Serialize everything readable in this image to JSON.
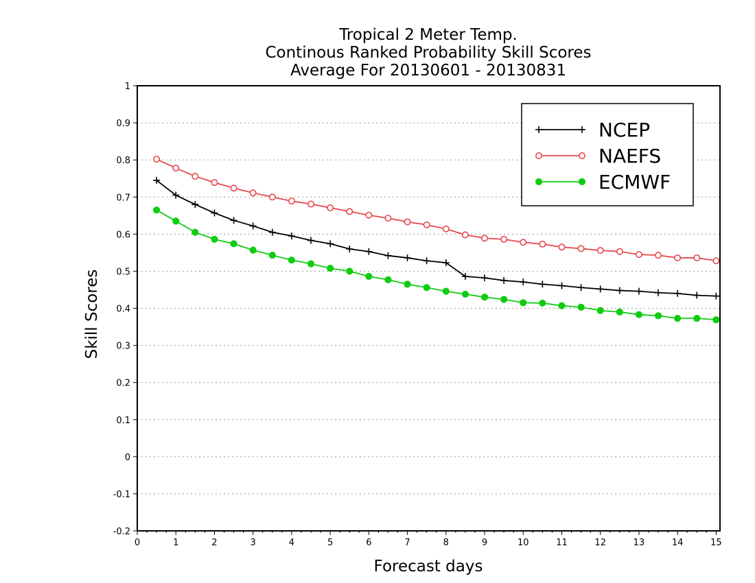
{
  "chart_data": {
    "type": "line",
    "title_lines": [
      "Tropical 2 Meter Temp.",
      "Continous Ranked Probability Skill Scores",
      "Average For 20130601 - 20130831"
    ],
    "xlabel": "Forecast days",
    "ylabel": "Skill Scores",
    "xlim": [
      0,
      15.1
    ],
    "ylim": [
      -0.2,
      1
    ],
    "x_ticks": [
      0,
      1,
      2,
      3,
      4,
      5,
      6,
      7,
      8,
      9,
      10,
      11,
      12,
      13,
      14,
      15
    ],
    "x_tick_labels": [
      "0",
      "1",
      "2",
      "3",
      "4",
      "5",
      "6",
      "7",
      "8",
      "9",
      "10",
      "11",
      "12",
      "13",
      "14",
      "15"
    ],
    "y_ticks": [
      -0.2,
      -0.1,
      0,
      0.1,
      0.2,
      0.3,
      0.4,
      0.5,
      0.6,
      0.7,
      0.8,
      0.9,
      1
    ],
    "y_tick_labels": [
      "-0.2",
      "-0.1",
      "0",
      "0.1",
      "0.2",
      "0.3",
      "0.4",
      "0.5",
      "0.6",
      "0.7",
      "0.8",
      "0.9",
      "1"
    ],
    "grid": true,
    "legend_position": "top-right",
    "x": [
      0.5,
      1.0,
      1.5,
      2.0,
      2.5,
      3.0,
      3.5,
      4.0,
      4.5,
      5.0,
      5.5,
      6.0,
      6.5,
      7.0,
      7.5,
      8.0,
      8.5,
      9.0,
      9.5,
      10.0,
      10.5,
      11.0,
      11.5,
      12.0,
      12.5,
      13.0,
      13.5,
      14.0,
      14.5,
      15.0
    ],
    "series": [
      {
        "name": "NCEP",
        "color": "#000000",
        "marker": "plus",
        "values": [
          0.745,
          0.705,
          0.68,
          0.657,
          0.637,
          0.622,
          0.605,
          0.595,
          0.583,
          0.574,
          0.56,
          0.553,
          0.542,
          0.536,
          0.528,
          0.523,
          0.486,
          0.482,
          0.475,
          0.471,
          0.465,
          0.461,
          0.456,
          0.452,
          0.448,
          0.446,
          0.442,
          0.44,
          0.435,
          0.433
        ]
      },
      {
        "name": "NAEFS",
        "color": "#e8474c",
        "marker": "open-circle",
        "values": [
          0.802,
          0.778,
          0.756,
          0.739,
          0.724,
          0.711,
          0.7,
          0.689,
          0.681,
          0.671,
          0.661,
          0.651,
          0.643,
          0.633,
          0.625,
          0.614,
          0.598,
          0.589,
          0.586,
          0.578,
          0.573,
          0.565,
          0.561,
          0.556,
          0.553,
          0.545,
          0.543,
          0.536,
          0.536,
          0.528
        ]
      },
      {
        "name": "ECMWF",
        "color": "#11cc11",
        "marker": "filled-circle",
        "values": [
          0.665,
          0.635,
          0.605,
          0.586,
          0.574,
          0.557,
          0.543,
          0.53,
          0.52,
          0.508,
          0.5,
          0.486,
          0.477,
          0.465,
          0.456,
          0.446,
          0.438,
          0.43,
          0.424,
          0.415,
          0.414,
          0.407,
          0.403,
          0.394,
          0.39,
          0.383,
          0.38,
          0.373,
          0.373,
          0.369
        ]
      }
    ]
  }
}
